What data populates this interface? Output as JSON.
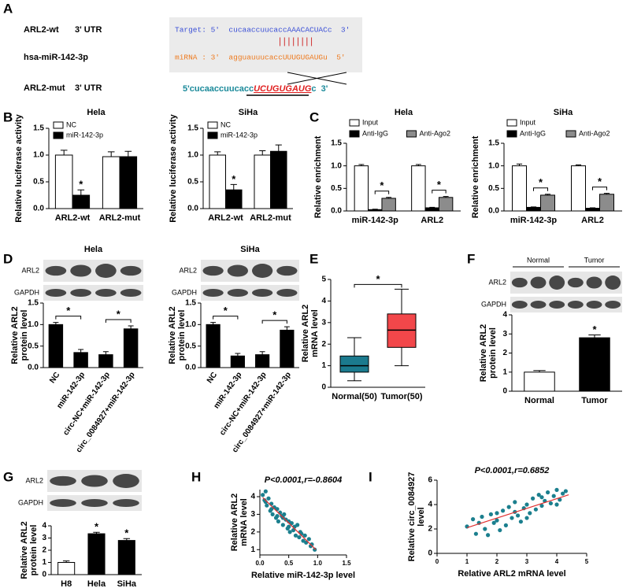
{
  "panel_labels": [
    "A",
    "B",
    "C",
    "D",
    "E",
    "F",
    "G",
    "H",
    "I"
  ],
  "panel_a": {
    "wt_label": "ARL2-wt",
    "wt_region": "3' UTR",
    "target": "Target: 5'  cucaaccuucaccAAACACUACc  3'",
    "pairing": "||||||||",
    "mirna_label": "hsa-miR-142-3p",
    "mirna": "miRNA : 3'  agguauuucaccUUUGUGAUGu  5'",
    "mut_label": "ARL2-mut",
    "mut_region": "3' UTR",
    "mut_seq": [
      "5'cucaaccuucacc",
      "UCUGUGAUG",
      "c  3'"
    ]
  },
  "chart_data": [
    {
      "type": "bar",
      "title": "Hela",
      "ylabel": "Relative luciferase activity",
      "categories": [
        "ARL2-wt",
        "ARL2-mut"
      ],
      "series": [
        {
          "name": "NC",
          "color": "#ffffff",
          "values": [
            1.0,
            0.97
          ],
          "errors": [
            0.09,
            0.09
          ]
        },
        {
          "name": "miR-142-3p",
          "color": "#000000",
          "values": [
            0.25,
            0.97
          ],
          "errors": [
            0.1,
            0.1
          ]
        }
      ],
      "ylim": [
        0,
        1.5
      ],
      "yticks": [
        {
          "value": 0,
          "label": "0.0"
        },
        0.5,
        {
          "value": 1,
          "label": "1.0"
        },
        1.5
      ],
      "legend": "top-left",
      "stars": [
        {
          "text": "*",
          "categories": [
            0
          ],
          "series": [
            1
          ]
        }
      ]
    },
    {
      "type": "bar",
      "title": "SiHa",
      "ylabel": "Relative luciferase activity",
      "categories": [
        "ARL2-wt",
        "ARL2-mut"
      ],
      "series": [
        {
          "name": "NC",
          "color": "#ffffff",
          "values": [
            1.0,
            1.0
          ],
          "errors": [
            0.06,
            0.08
          ]
        },
        {
          "name": "miR-142-3p",
          "color": "#000000",
          "values": [
            0.35,
            1.07
          ],
          "errors": [
            0.1,
            0.12
          ]
        }
      ],
      "ylim": [
        0,
        1.5
      ],
      "yticks": [
        {
          "value": 0,
          "label": "0.0"
        },
        0.5,
        {
          "value": 1,
          "label": "1.0"
        },
        1.5
      ],
      "legend": "top-left",
      "stars": [
        {
          "text": "*",
          "categories": [
            0
          ],
          "series": [
            1
          ]
        }
      ]
    },
    {
      "type": "bar",
      "title": "Hela",
      "ylabel": "Relative enrichment",
      "categories": [
        "miR-142-3p",
        "ARL2"
      ],
      "series": [
        {
          "name": "Input",
          "color": "#ffffff",
          "values": [
            1.0,
            1.0
          ],
          "errors": [
            0.03,
            0.03
          ]
        },
        {
          "name": "Anti-IgG",
          "color": "#000000",
          "values": [
            0.03,
            0.07
          ],
          "errors": [
            0.01,
            0.01
          ]
        },
        {
          "name": "Anti-Ago2",
          "color": "#8c8c8c",
          "values": [
            0.28,
            0.3
          ],
          "errors": [
            0.02,
            0.02
          ]
        }
      ],
      "ylim": [
        0,
        1.5
      ],
      "yticks": [
        {
          "value": 0,
          "label": "0.0"
        },
        0.5,
        {
          "value": 1,
          "label": "1.0"
        },
        1.5
      ],
      "legend": "top",
      "stars": [
        {
          "text": "*",
          "categories": [
            0
          ],
          "series": [
            1,
            2
          ]
        },
        {
          "text": "*",
          "categories": [
            1
          ],
          "series": [
            1,
            2
          ]
        }
      ]
    },
    {
      "type": "bar",
      "title": "SiHa",
      "ylabel": "Relative enrichment",
      "categories": [
        "miR-142-3p",
        "ARL2"
      ],
      "series": [
        {
          "name": "Input",
          "color": "#ffffff",
          "values": [
            1.0,
            1.0
          ],
          "errors": [
            0.04,
            0.02
          ]
        },
        {
          "name": "Anti-IgG",
          "color": "#000000",
          "values": [
            0.08,
            0.06
          ],
          "errors": [
            0.01,
            0.01
          ]
        },
        {
          "name": "Anti-Ago2",
          "color": "#8c8c8c",
          "values": [
            0.35,
            0.37
          ],
          "errors": [
            0.02,
            0.02
          ]
        }
      ],
      "ylim": [
        0,
        1.5
      ],
      "yticks": [
        {
          "value": 0,
          "label": "0.0"
        },
        0.5,
        {
          "value": 1,
          "label": "1.0"
        },
        1.5
      ],
      "legend": "top",
      "stars": [
        {
          "text": "*",
          "categories": [
            0
          ],
          "series": [
            1,
            2
          ]
        },
        {
          "text": "*",
          "categories": [
            1
          ],
          "series": [
            1,
            2
          ]
        }
      ]
    },
    {
      "type": "bar",
      "title": "Hela",
      "ylabel": "Relative ARL2 protein level",
      "blot_labels": [
        "ARL2",
        "GAPDH"
      ],
      "categories": [
        "NC",
        "miR-142-3p",
        "circ-NC+miR-142-3p",
        "circ_0084927+miR-142-3p"
      ],
      "series": [
        {
          "color": "#000000",
          "values": [
            1.0,
            0.35,
            0.3,
            0.9
          ],
          "errors": [
            0.05,
            0.07,
            0.07,
            0.07
          ]
        }
      ],
      "ylim": [
        0,
        1.5
      ],
      "yticks": [
        {
          "value": 0,
          "label": "0.0"
        },
        0.5,
        {
          "value": 1,
          "label": "1.0"
        },
        1.5
      ],
      "stars": [
        {
          "text": "*",
          "categories": [
            0,
            1
          ]
        },
        {
          "text": "*",
          "categories": [
            2,
            3
          ]
        }
      ]
    },
    {
      "type": "bar",
      "title": "SiHa",
      "ylabel": "Relative ARL2 protein level",
      "blot_labels": [
        "ARL2",
        "GAPDH"
      ],
      "categories": [
        "NC",
        "miR-142-3p",
        "circ-NC+miR-142-3p",
        "circ_0084927+miR-142-3p"
      ],
      "series": [
        {
          "color": "#000000",
          "values": [
            1.0,
            0.27,
            0.3,
            0.87
          ],
          "errors": [
            0.05,
            0.06,
            0.07,
            0.08
          ]
        }
      ],
      "ylim": [
        0,
        1.5
      ],
      "yticks": [
        {
          "value": 0,
          "label": "0.0"
        },
        0.5,
        {
          "value": 1,
          "label": "1.0"
        },
        1.5
      ],
      "stars": [
        {
          "text": "*",
          "categories": [
            0,
            1
          ]
        },
        {
          "text": "*",
          "categories": [
            2,
            3
          ]
        }
      ]
    },
    {
      "type": "box",
      "ylabel": "Relative ARL2 mRNA level",
      "categories": [
        "Normal(50)",
        "Tumor(50)"
      ],
      "boxes": [
        {
          "color": "#1b7a8e",
          "whisker_low": 0.3,
          "q1": 0.7,
          "median": 1.0,
          "q3": 1.45,
          "whisker_high": 2.3
        },
        {
          "color": "#f2474a",
          "whisker_low": 1.0,
          "q1": 1.85,
          "median": 2.65,
          "q3": 3.4,
          "whisker_high": 4.55
        }
      ],
      "ylim": [
        0,
        5
      ],
      "yticks": [
        0,
        1,
        2,
        3,
        4,
        5
      ],
      "stars": [
        {
          "text": "*",
          "categories": [
            0,
            1
          ]
        }
      ]
    },
    {
      "type": "bar",
      "ylabel": "Relative ARL2 protein level",
      "blot_labels": [
        "ARL2",
        "GAPDH"
      ],
      "blot_groups": [
        "Normal",
        "Tumor"
      ],
      "categories": [
        "Normal",
        "Tumor"
      ],
      "series": [
        {
          "colors": [
            "#ffffff",
            "#000000"
          ],
          "values": [
            1.0,
            2.8
          ],
          "errors": [
            0.08,
            0.15
          ]
        }
      ],
      "ylim": [
        0,
        4
      ],
      "yticks": [
        0,
        1,
        2,
        3,
        4
      ],
      "stars": [
        {
          "text": "*",
          "categories": [
            1
          ]
        }
      ]
    },
    {
      "type": "bar",
      "ylabel": "Relative ARL2 protein level",
      "blot_labels": [
        "ARL2",
        "GAPDH"
      ],
      "categories": [
        "H8",
        "Hela",
        "SiHa"
      ],
      "series": [
        {
          "colors": [
            "#ffffff",
            "#000000",
            "#000000"
          ],
          "values": [
            1.0,
            3.35,
            2.8
          ],
          "errors": [
            0.12,
            0.12,
            0.15
          ]
        }
      ],
      "ylim": [
        0,
        4
      ],
      "yticks": [
        0,
        1,
        2,
        3,
        4
      ],
      "stars": [
        {
          "text": "*",
          "categories": [
            1
          ]
        },
        {
          "text": "*",
          "categories": [
            2
          ]
        }
      ]
    },
    {
      "type": "scatter",
      "title": "P<0.0001,r=-0.8604",
      "xlabel": "Relative miR-142-3p level",
      "ylabel": "Relative ARL2 mRNA level",
      "color": "#1b7f8e",
      "fit_color": "#e03030",
      "x": [
        0.05,
        0.08,
        0.1,
        0.12,
        0.15,
        0.18,
        0.2,
        0.22,
        0.25,
        0.28,
        0.3,
        0.32,
        0.35,
        0.38,
        0.4,
        0.42,
        0.45,
        0.48,
        0.5,
        0.52,
        0.55,
        0.58,
        0.6,
        0.62,
        0.65,
        0.68,
        0.7,
        0.72,
        0.75,
        0.78,
        0.8,
        0.85,
        0.88,
        0.9,
        0.95,
        0.1,
        0.2,
        0.3,
        0.4,
        0.5
      ],
      "y": [
        4.1,
        3.8,
        4.3,
        3.5,
        3.9,
        3.2,
        3.6,
        3.0,
        3.4,
        2.8,
        3.3,
        2.6,
        3.1,
        2.9,
        2.4,
        3.0,
        2.7,
        2.2,
        2.6,
        2.0,
        2.5,
        2.1,
        2.3,
        1.8,
        2.4,
        1.7,
        2.0,
        1.9,
        1.5,
        1.8,
        1.4,
        1.6,
        1.2,
        1.3,
        1.0,
        3.7,
        3.3,
        2.9,
        2.8,
        2.3
      ],
      "fit": {
        "x": [
          0.05,
          0.97
        ],
        "y": [
          3.95,
          1.0
        ]
      },
      "xlim": [
        0,
        1.5
      ],
      "xticks": [
        {
          "value": 0,
          "label": "0.0"
        },
        0.5,
        {
          "value": 1,
          "label": "1.0"
        },
        1.5
      ],
      "ylim": [
        0.7,
        4.4
      ],
      "yticks": [
        1,
        2,
        3,
        4
      ]
    },
    {
      "type": "scatter",
      "title": "P<0.0001,r=0.6852",
      "xlabel": "Relative ARL2 mRNA level",
      "ylabel": "Relative circ_0084927 level",
      "color": "#1b7f8e",
      "fit_color": "#e03030",
      "x": [
        1.0,
        1.2,
        1.3,
        1.5,
        1.6,
        1.7,
        1.8,
        1.9,
        2.0,
        2.1,
        2.2,
        2.3,
        2.4,
        2.5,
        2.6,
        2.7,
        2.8,
        2.9,
        3.0,
        3.1,
        3.2,
        3.3,
        3.4,
        3.5,
        3.6,
        3.7,
        3.8,
        3.9,
        4.0,
        4.1,
        4.2,
        4.3,
        1.4,
        2.0,
        2.6,
        3.0,
        3.5,
        4.0
      ],
      "y": [
        2.2,
        2.8,
        1.6,
        3.0,
        2.0,
        1.5,
        3.2,
        2.5,
        2.7,
        1.9,
        3.5,
        2.3,
        3.8,
        2.9,
        4.2,
        3.1,
        2.6,
        3.7,
        4.0,
        3.3,
        4.5,
        3.6,
        4.8,
        3.9,
        4.3,
        5.0,
        4.1,
        4.7,
        5.2,
        4.4,
        4.9,
        5.1,
        2.5,
        3.3,
        3.4,
        2.9,
        4.6,
        4.0
      ],
      "fit": {
        "x": [
          1.0,
          4.4
        ],
        "y": [
          2.1,
          4.8
        ]
      },
      "xlim": [
        0,
        5
      ],
      "xticks": [
        0,
        1,
        2,
        3,
        4,
        5
      ],
      "ylim": [
        0,
        6
      ],
      "yticks": [
        0,
        2,
        4,
        6
      ]
    }
  ]
}
